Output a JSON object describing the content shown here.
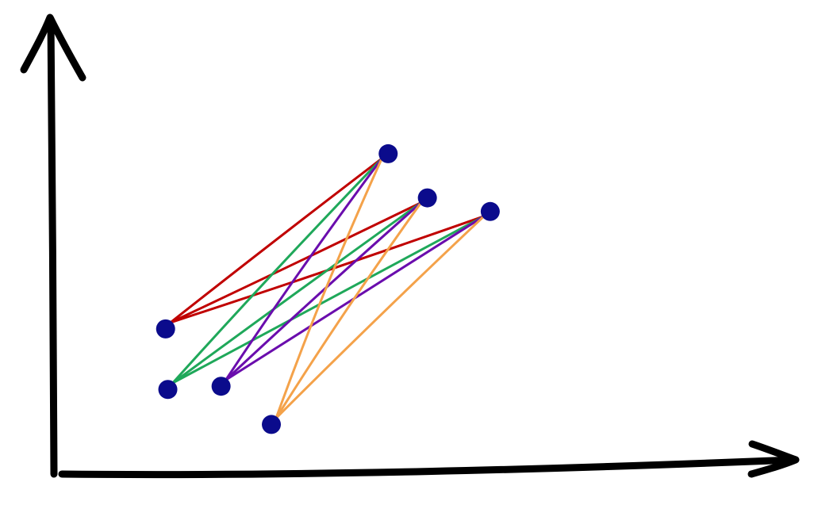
{
  "chart_data": {
    "type": "scatter",
    "title": "",
    "xlabel": "",
    "ylabel": "",
    "grid": false,
    "legend": "none",
    "xlim": [
      0,
      100
    ],
    "ylim": [
      0,
      100
    ],
    "points": [
      {
        "x": 15.1,
        "y": 31.9
      },
      {
        "x": 15.4,
        "y": 18.6
      },
      {
        "x": 22.6,
        "y": 19.3
      },
      {
        "x": 29.4,
        "y": 10.9
      },
      {
        "x": 45.2,
        "y": 70.4
      },
      {
        "x": 50.5,
        "y": 60.7
      },
      {
        "x": 59.0,
        "y": 57.7
      }
    ],
    "point_color": "#0b0b8c",
    "connectors": [
      {
        "color": "#c00000",
        "from": 0,
        "to": 4
      },
      {
        "color": "#c00000",
        "from": 0,
        "to": 5
      },
      {
        "color": "#c00000",
        "from": 0,
        "to": 6
      },
      {
        "color": "#1fa85a",
        "from": 1,
        "to": 4
      },
      {
        "color": "#1fa85a",
        "from": 1,
        "to": 5
      },
      {
        "color": "#1fa85a",
        "from": 1,
        "to": 6
      },
      {
        "color": "#6a0dad",
        "from": 2,
        "to": 4
      },
      {
        "color": "#6a0dad",
        "from": 2,
        "to": 5
      },
      {
        "color": "#6a0dad",
        "from": 2,
        "to": 6
      },
      {
        "color": "#f4a24a",
        "from": 3,
        "to": 4
      },
      {
        "color": "#f4a24a",
        "from": 3,
        "to": 5
      },
      {
        "color": "#f4a24a",
        "from": 3,
        "to": 6
      }
    ]
  }
}
